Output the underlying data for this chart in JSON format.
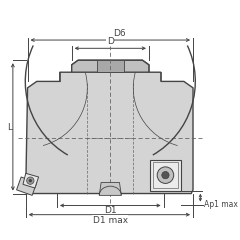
{
  "bg_color": "#ffffff",
  "body_fill": "#d4d4d4",
  "body_fill2": "#c8c8c8",
  "edge_color": "#444444",
  "dim_color": "#444444",
  "dash_color": "#666666",
  "insert_fill": "#e0e0e0",
  "insert_dark": "#b0b0b0",
  "insert_edge": "#333333",
  "labels": {
    "D6": "D6",
    "D": "D",
    "L": "L",
    "D1": "D1",
    "D1max": "D1 max",
    "Ap1max": "Ap1 max"
  }
}
